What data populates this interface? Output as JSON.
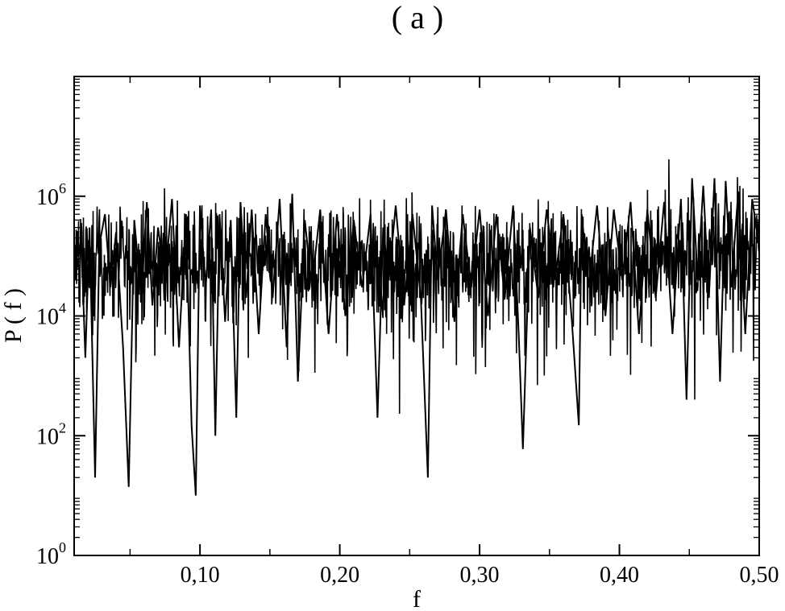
{
  "chart_data": {
    "type": "line",
    "panel_label": "( a )",
    "xlabel": "f",
    "ylabel": "P ( f )",
    "x_scale": "linear",
    "y_scale": "log",
    "xlim": [
      0.01,
      0.5
    ],
    "ylim": [
      1,
      100000000
    ],
    "x_ticks": [
      0.1,
      0.2,
      0.3,
      0.4,
      0.5
    ],
    "x_tick_labels": [
      "0,10",
      "0,20",
      "0,30",
      "0,40",
      "0,50"
    ],
    "y_ticks": [
      1,
      100,
      10000,
      1000000
    ],
    "y_tick_labels": [
      {
        "base": "10",
        "exp": "0"
      },
      {
        "base": "10",
        "exp": "2"
      },
      {
        "base": "10",
        "exp": "4"
      },
      {
        "base": "10",
        "exp": "6"
      }
    ],
    "grid": false,
    "line_color": "#000000",
    "series": [
      {
        "x": [
          0.012,
          0.015,
          0.018,
          0.021,
          0.025,
          0.028,
          0.032,
          0.036,
          0.04,
          0.045,
          0.049,
          0.053,
          0.058,
          0.062,
          0.066,
          0.07,
          0.075,
          0.08,
          0.085,
          0.09,
          0.094,
          0.097,
          0.1,
          0.104,
          0.108,
          0.111,
          0.114,
          0.118,
          0.122,
          0.126,
          0.129,
          0.133,
          0.137,
          0.142,
          0.147,
          0.152,
          0.157,
          0.162,
          0.166,
          0.17,
          0.175,
          0.18,
          0.186,
          0.192,
          0.198,
          0.204,
          0.21,
          0.216,
          0.222,
          0.227,
          0.231,
          0.235,
          0.24,
          0.246,
          0.252,
          0.258,
          0.263,
          0.266,
          0.27,
          0.276,
          0.282,
          0.288,
          0.294,
          0.3,
          0.306,
          0.312,
          0.318,
          0.324,
          0.328,
          0.331,
          0.336,
          0.342,
          0.348,
          0.354,
          0.36,
          0.366,
          0.371,
          0.373,
          0.378,
          0.384,
          0.39,
          0.396,
          0.402,
          0.408,
          0.414,
          0.42,
          0.426,
          0.432,
          0.438,
          0.444,
          0.448,
          0.452,
          0.456,
          0.46,
          0.464,
          0.468,
          0.472,
          0.476,
          0.48,
          0.485,
          0.49,
          0.495,
          0.499
        ],
        "y": [
          60000,
          200000,
          2000,
          300000,
          20,
          150000,
          500000,
          30000,
          250000,
          3000,
          14,
          400000,
          20000,
          800000,
          15000,
          300000,
          40000,
          900000,
          3000,
          500000,
          150,
          10,
          700000,
          30000,
          600000,
          100,
          500000,
          8000,
          400000,
          200,
          800000,
          20000,
          600000,
          5000,
          500000,
          20000,
          900000,
          3000,
          1100000,
          800,
          400000,
          30000,
          600000,
          5000,
          500000,
          10000,
          400000,
          30000,
          500000,
          200,
          300000,
          40000,
          700000,
          15000,
          500000,
          20000,
          20,
          700000,
          40000,
          600000,
          8000,
          500000,
          30000,
          600000,
          10000,
          500000,
          20000,
          700000,
          5000,
          60,
          300000,
          20000,
          600000,
          40000,
          500000,
          8000,
          150,
          500000,
          30000,
          700000,
          10000,
          600000,
          40000,
          800000,
          5000,
          600000,
          20000,
          800000,
          5000,
          900000,
          400,
          2000000,
          40000,
          1500000,
          20000,
          2000000,
          800,
          1800000,
          30000,
          1200000,
          5000,
          900000,
          200000
        ]
      }
    ]
  }
}
